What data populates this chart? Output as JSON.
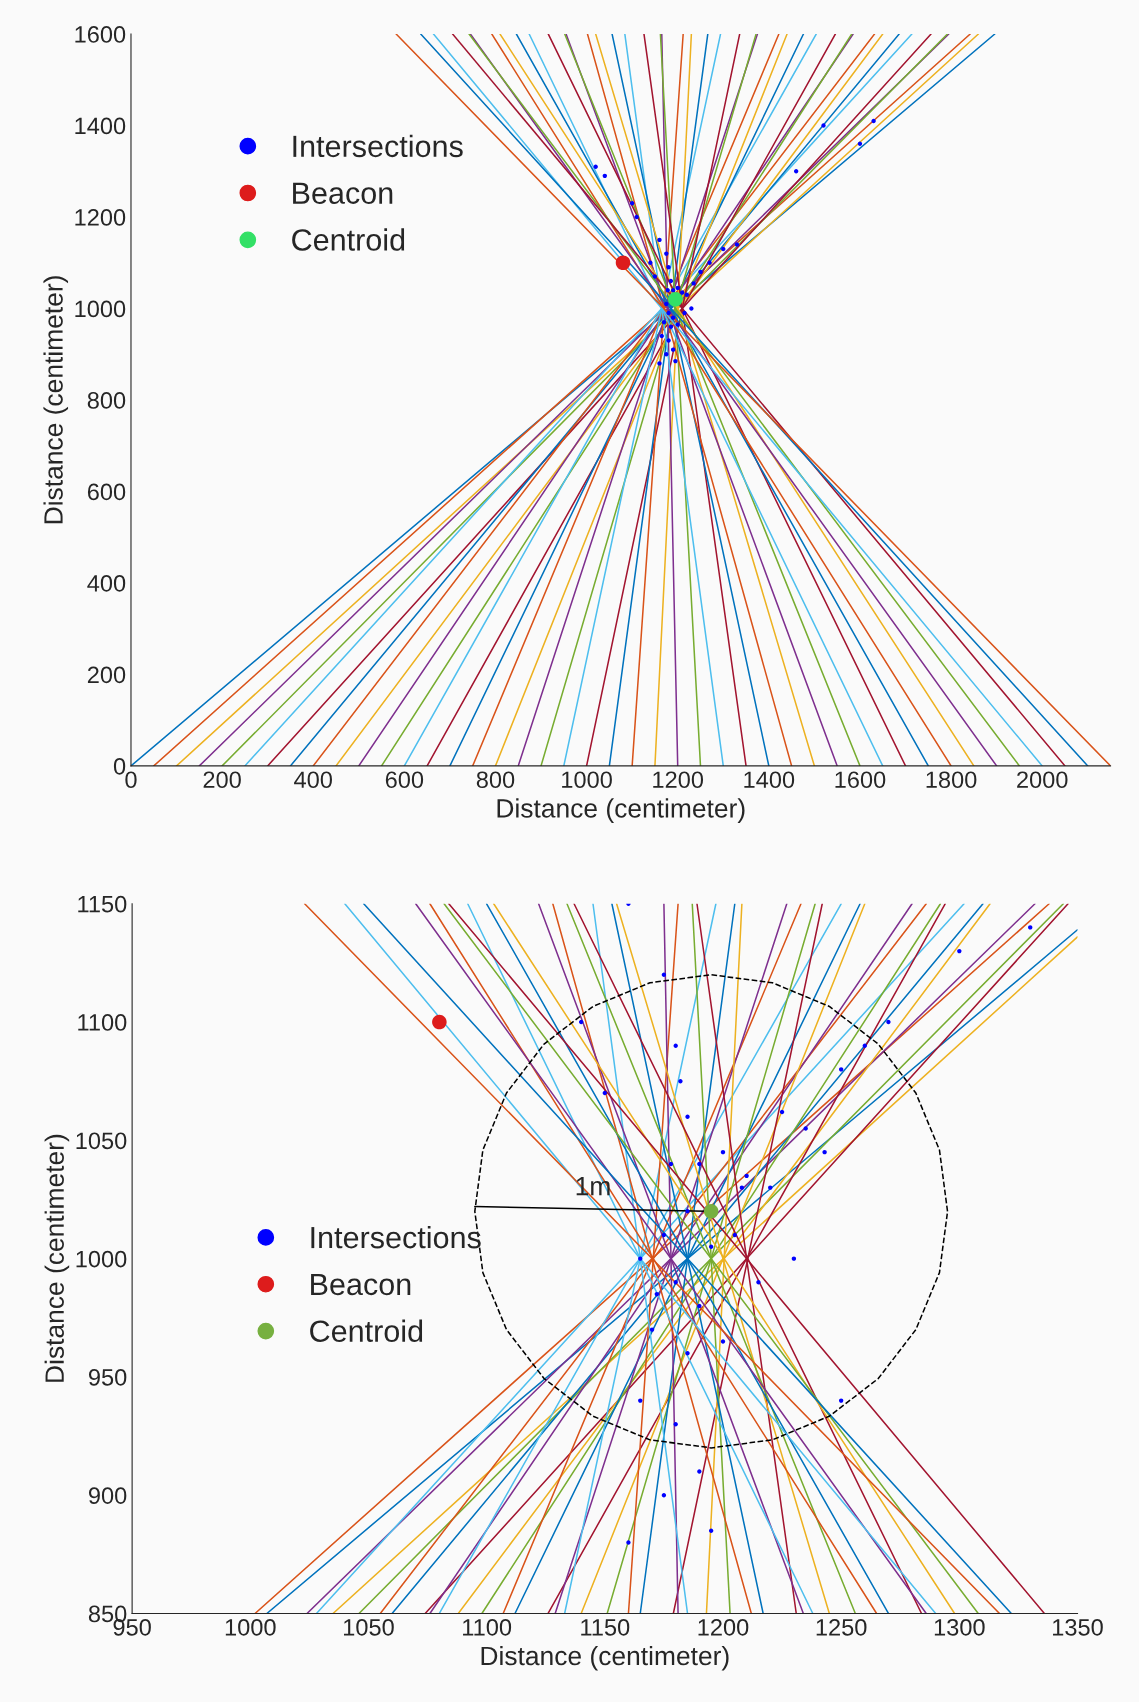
{
  "chart_data": [
    {
      "type": "line",
      "xlabel": "Distance (centimeter)",
      "ylabel": "Distance (centimeter)",
      "xlim": [
        0,
        2150
      ],
      "ylim": [
        0,
        1600
      ],
      "xticks": [
        0,
        200,
        400,
        600,
        800,
        1000,
        1200,
        1400,
        1600,
        1800,
        2000
      ],
      "yticks": [
        0,
        200,
        400,
        600,
        800,
        1000,
        1200,
        1400,
        1600
      ],
      "legend": "top left",
      "series": [
        {
          "color": "#0072bd",
          "x": [
            0,
            1896
          ],
          "values": [
            0,
            1600
          ]
        },
        {
          "color": "#d95319",
          "x": [
            50,
            1842
          ],
          "values": [
            0,
            1600
          ]
        },
        {
          "color": "#edb120",
          "x": [
            100,
            1860
          ],
          "values": [
            0,
            1600
          ]
        },
        {
          "color": "#7e2f8e",
          "x": [
            150,
            1795
          ],
          "values": [
            0,
            1600
          ]
        },
        {
          "color": "#77ac30",
          "x": [
            200,
            1792
          ],
          "values": [
            0,
            1600
          ]
        },
        {
          "color": "#4dbeee",
          "x": [
            250,
            1714
          ],
          "values": [
            0,
            1600
          ]
        },
        {
          "color": "#a2142f",
          "x": [
            300,
            1756
          ],
          "values": [
            0,
            1600
          ]
        },
        {
          "color": "#0072bd",
          "x": [
            350,
            1686
          ],
          "values": [
            0,
            1600
          ]
        },
        {
          "color": "#d95319",
          "x": [
            400,
            1632
          ],
          "values": [
            0,
            1600
          ]
        },
        {
          "color": "#edb120",
          "x": [
            450,
            1650
          ],
          "values": [
            0,
            1600
          ]
        },
        {
          "color": "#7e2f8e",
          "x": [
            500,
            1585
          ],
          "values": [
            0,
            1600
          ]
        },
        {
          "color": "#77ac30",
          "x": [
            550,
            1582
          ],
          "values": [
            0,
            1600
          ]
        },
        {
          "color": "#4dbeee",
          "x": [
            600,
            1504
          ],
          "values": [
            0,
            1600
          ]
        },
        {
          "color": "#a2142f",
          "x": [
            650,
            1546
          ],
          "values": [
            0,
            1600
          ]
        },
        {
          "color": "#0072bd",
          "x": [
            700,
            1476
          ],
          "values": [
            0,
            1600
          ]
        },
        {
          "color": "#d95319",
          "x": [
            750,
            1422
          ],
          "values": [
            0,
            1600
          ]
        },
        {
          "color": "#edb120",
          "x": [
            800,
            1440
          ],
          "values": [
            0,
            1600
          ]
        },
        {
          "color": "#7e2f8e",
          "x": [
            850,
            1375
          ],
          "values": [
            0,
            1600
          ]
        },
        {
          "color": "#77ac30",
          "x": [
            900,
            1372
          ],
          "values": [
            0,
            1600
          ]
        },
        {
          "color": "#4dbeee",
          "x": [
            950,
            1294
          ],
          "values": [
            0,
            1600
          ]
        },
        {
          "color": "#a2142f",
          "x": [
            1000,
            1336
          ],
          "values": [
            0,
            1600
          ]
        },
        {
          "color": "#0072bd",
          "x": [
            1050,
            1266
          ],
          "values": [
            0,
            1600
          ]
        },
        {
          "color": "#d95319",
          "x": [
            1100,
            1212
          ],
          "values": [
            0,
            1600
          ]
        },
        {
          "color": "#edb120",
          "x": [
            1150,
            1230
          ],
          "values": [
            0,
            1600
          ]
        },
        {
          "color": "#7e2f8e",
          "x": [
            1200,
            1165
          ],
          "values": [
            0,
            1600
          ]
        },
        {
          "color": "#77ac30",
          "x": [
            1250,
            1162
          ],
          "values": [
            0,
            1600
          ]
        },
        {
          "color": "#4dbeee",
          "x": [
            1300,
            1084
          ],
          "values": [
            0,
            1600
          ]
        },
        {
          "color": "#a2142f",
          "x": [
            1350,
            1126
          ],
          "values": [
            0,
            1600
          ]
        },
        {
          "color": "#0072bd",
          "x": [
            1400,
            1056
          ],
          "values": [
            0,
            1600
          ]
        },
        {
          "color": "#d95319",
          "x": [
            1450,
            1002
          ],
          "values": [
            0,
            1600
          ]
        },
        {
          "color": "#edb120",
          "x": [
            1500,
            1020
          ],
          "values": [
            0,
            1600
          ]
        },
        {
          "color": "#7e2f8e",
          "x": [
            1550,
            955
          ],
          "values": [
            0,
            1600
          ]
        },
        {
          "color": "#77ac30",
          "x": [
            1600,
            952
          ],
          "values": [
            0,
            1600
          ]
        },
        {
          "color": "#4dbeee",
          "x": [
            1650,
            874
          ],
          "values": [
            0,
            1600
          ]
        },
        {
          "color": "#a2142f",
          "x": [
            1700,
            916
          ],
          "values": [
            0,
            1600
          ]
        },
        {
          "color": "#0072bd",
          "x": [
            1750,
            846
          ],
          "values": [
            0,
            1600
          ]
        },
        {
          "color": "#d95319",
          "x": [
            1800,
            792
          ],
          "values": [
            0,
            1600
          ]
        },
        {
          "color": "#edb120",
          "x": [
            1850,
            810
          ],
          "values": [
            0,
            1600
          ]
        },
        {
          "color": "#7e2f8e",
          "x": [
            1900,
            745
          ],
          "values": [
            0,
            1600
          ]
        },
        {
          "color": "#77ac30",
          "x": [
            1950,
            742
          ],
          "values": [
            0,
            1600
          ]
        },
        {
          "color": "#4dbeee",
          "x": [
            2000,
            664
          ],
          "values": [
            0,
            1600
          ]
        },
        {
          "color": "#a2142f",
          "x": [
            2050,
            706
          ],
          "values": [
            0,
            1600
          ]
        },
        {
          "color": "#0072bd",
          "x": [
            2100,
            636
          ],
          "values": [
            0,
            1600
          ]
        },
        {
          "color": "#d95319",
          "x": [
            2150,
            582
          ],
          "values": [
            0,
            1600
          ]
        },
        {
          "type": "scatter",
          "name": "Intersections",
          "color": "#0000ff",
          "marker": "circle",
          "x": [
            1020,
            1040,
            1100,
            1110,
            1160,
            1175,
            1180,
            1185,
            1178,
            1190,
            1200,
            1210,
            1175,
            1195,
            1205,
            1220,
            1235,
            1250,
            1180,
            1190,
            1170,
            1185,
            1200,
            1215,
            1165,
            1180,
            1175,
            1190,
            1160,
            1195,
            1230,
            1150,
            1140,
            1270,
            1300,
            1330,
            1460,
            1520,
            1600,
            1630
          ],
          "values": [
            1310,
            1290,
            1230,
            1200,
            1150,
            1120,
            1090,
            1060,
            1040,
            1040,
            1045,
            1035,
            1010,
            null,
            null,
            1030,
            1055,
            1080,
            990,
            980,
            970,
            960,
            965,
            990,
            940,
            930,
            900,
            910,
            880,
            885,
            1000,
            1070,
            1100,
            1100,
            1130,
            1140,
            1300,
            1400,
            1360,
            1410
          ]
        },
        {
          "type": "scatter",
          "name": "Beacon",
          "color": "#dd1c1c",
          "marker": "circle",
          "x": [
            1080
          ],
          "values": [
            1100
          ]
        },
        {
          "type": "scatter",
          "name": "Centroid",
          "color": "#33e066",
          "marker": "circle",
          "x": [
            1195
          ],
          "values": [
            1020
          ]
        }
      ]
    },
    {
      "type": "line",
      "xlabel": "Distance (centimeter)",
      "ylabel": "Distance (centimeter)",
      "xlim": [
        950,
        1350
      ],
      "ylim": [
        850,
        1150
      ],
      "xticks": [
        950,
        1000,
        1050,
        1100,
        1150,
        1200,
        1250,
        1300,
        1350
      ],
      "yticks": [
        850,
        900,
        950,
        1000,
        1050,
        1100,
        1150
      ],
      "legend": "left",
      "annotations": [
        {
          "text": "1m",
          "x": 1145,
          "y": 1021
        }
      ],
      "series": [
        {
          "color": "#0072bd",
          "x": [
            1007,
            1350
          ],
          "values": [
            850,
            1139
          ]
        },
        {
          "color": "#d95319",
          "x": [
            1002,
            1338
          ],
          "values": [
            850,
            1150
          ]
        },
        {
          "color": "#edb120",
          "x": [
            1035,
            1350
          ],
          "values": [
            850,
            1136
          ]
        },
        {
          "color": "#7e2f8e",
          "x": [
            1024,
            1332
          ],
          "values": [
            850,
            1150
          ]
        },
        {
          "color": "#77ac30",
          "x": [
            1046,
            1344
          ],
          "values": [
            850,
            1150
          ]
        },
        {
          "color": "#4dbeee",
          "x": [
            1028,
            1302
          ],
          "values": [
            850,
            1150
          ]
        },
        {
          "color": "#a2142f",
          "x": [
            1074,
            1346
          ],
          "values": [
            850,
            1150
          ]
        },
        {
          "color": "#0072bd",
          "x": [
            1060,
            1310
          ],
          "values": [
            850,
            1150
          ]
        },
        {
          "color": "#d95319",
          "x": [
            1055,
            1286
          ],
          "values": [
            850,
            1150
          ]
        },
        {
          "color": "#edb120",
          "x": [
            1088,
            1313
          ],
          "values": [
            850,
            1150
          ]
        },
        {
          "color": "#7e2f8e",
          "x": [
            1076,
            1280
          ],
          "values": [
            850,
            1150
          ]
        },
        {
          "color": "#77ac30",
          "x": [
            1098,
            1292
          ],
          "values": [
            850,
            1150
          ]
        },
        {
          "color": "#4dbeee",
          "x": [
            1080,
            1250
          ],
          "values": [
            850,
            1150
          ]
        },
        {
          "color": "#a2142f",
          "x": [
            1126,
            1294
          ],
          "values": [
            850,
            1150
          ]
        },
        {
          "color": "#0072bd",
          "x": [
            1112,
            1258
          ],
          "values": [
            850,
            1150
          ]
        },
        {
          "color": "#d95319",
          "x": [
            1107,
            1233
          ],
          "values": [
            850,
            1150
          ]
        },
        {
          "color": "#edb120",
          "x": [
            1140,
            1260
          ],
          "values": [
            850,
            1150
          ]
        },
        {
          "color": "#7e2f8e",
          "x": [
            1129,
            1227
          ],
          "values": [
            850,
            1150
          ]
        },
        {
          "color": "#77ac30",
          "x": [
            1151,
            1239
          ],
          "values": [
            850,
            1150
          ]
        },
        {
          "color": "#4dbeee",
          "x": [
            1133,
            1197
          ],
          "values": [
            850,
            1150
          ]
        },
        {
          "color": "#a2142f",
          "x": [
            1179,
            1242
          ],
          "values": [
            850,
            1150
          ]
        },
        {
          "color": "#0072bd",
          "x": [
            1165,
            1205
          ],
          "values": [
            850,
            1150
          ]
        },
        {
          "color": "#d95319",
          "x": [
            1160,
            1181
          ],
          "values": [
            850,
            1150
          ]
        },
        {
          "color": "#edb120",
          "x": [
            1193,
            1208
          ],
          "values": [
            850,
            1150
          ]
        },
        {
          "color": "#7e2f8e",
          "x": [
            1181,
            1175
          ],
          "values": [
            850,
            1150
          ]
        },
        {
          "color": "#77ac30",
          "x": [
            1203,
            1187
          ],
          "values": [
            850,
            1150
          ]
        },
        {
          "color": "#4dbeee",
          "x": [
            1185,
            1145
          ],
          "values": [
            850,
            1150
          ]
        },
        {
          "color": "#a2142f",
          "x": [
            1231,
            1189
          ],
          "values": [
            850,
            1150
          ]
        },
        {
          "color": "#0072bd",
          "x": [
            1217,
            1153
          ],
          "values": [
            850,
            1150
          ]
        },
        {
          "color": "#d95319",
          "x": [
            1212,
            1128
          ],
          "values": [
            850,
            1150
          ]
        },
        {
          "color": "#edb120",
          "x": [
            1245,
            1155
          ],
          "values": [
            850,
            1150
          ]
        },
        {
          "color": "#7e2f8e",
          "x": [
            1234,
            1122
          ],
          "values": [
            850,
            1150
          ]
        },
        {
          "color": "#77ac30",
          "x": [
            1256,
            1134
          ],
          "values": [
            850,
            1150
          ]
        },
        {
          "color": "#4dbeee",
          "x": [
            1238,
            1092
          ],
          "values": [
            850,
            1150
          ]
        },
        {
          "color": "#a2142f",
          "x": [
            1284,
            1137
          ],
          "values": [
            850,
            1150
          ]
        },
        {
          "color": "#0072bd",
          "x": [
            1270,
            1100
          ],
          "values": [
            850,
            1150
          ]
        },
        {
          "color": "#d95319",
          "x": [
            1265,
            1076
          ],
          "values": [
            850,
            1150
          ]
        },
        {
          "color": "#edb120",
          "x": [
            1298,
            1103
          ],
          "values": [
            850,
            1150
          ]
        },
        {
          "color": "#7e2f8e",
          "x": [
            1286,
            1070
          ],
          "values": [
            850,
            1150
          ]
        },
        {
          "color": "#77ac30",
          "x": [
            1308,
            1082
          ],
          "values": [
            850,
            1150
          ]
        },
        {
          "color": "#4dbeee",
          "x": [
            1290,
            1040
          ],
          "values": [
            850,
            1150
          ]
        },
        {
          "color": "#a2142f",
          "x": [
            1336,
            1084
          ],
          "values": [
            850,
            1150
          ]
        },
        {
          "color": "#0072bd",
          "x": [
            1322,
            1048
          ],
          "values": [
            850,
            1150
          ]
        },
        {
          "color": "#d95319",
          "x": [
            1317,
            1023
          ],
          "values": [
            850,
            1150
          ]
        },
        {
          "color": "#000000",
          "line_style": "dashed",
          "x": [
            1295,
            1291.6,
            1281.6,
            1265.7,
            1245,
            1220.9,
            1195,
            1169.1,
            1145,
            1124.3,
            1108.4,
            1098.4,
            1095,
            1098.4,
            1108.4,
            1124.3,
            1145,
            1169.1,
            1195,
            1220.9,
            1245,
            1265.7,
            1281.6,
            1291.6,
            1294.9
          ],
          "values": [
            1020,
            1045.9,
            1070,
            1090.7,
            1106.6,
            1116.6,
            1120,
            1116.6,
            1106.6,
            1090.7,
            1070,
            1045.9,
            1020,
            994.1,
            970,
            949.3,
            933.4,
            923.4,
            920,
            923.4,
            933.4,
            949.3,
            970,
            994.1,
            1019
          ]
        },
        {
          "color": "#000000",
          "x": [
            1095,
            1193
          ],
          "values": [
            1022,
            1020
          ]
        },
        {
          "type": "scatter",
          "name": "Intersections",
          "color": "#0000ff",
          "marker": "circle",
          "x": [
            1160,
            1175,
            1180,
            1185,
            1178,
            1190,
            1200,
            1210,
            1185,
            1175,
            1195,
            1205,
            1220,
            1235,
            1250,
            1180,
            1190,
            1170,
            1185,
            1200,
            1215,
            1165,
            1180,
            1175,
            1190,
            1160,
            1195,
            1230,
            1250,
            1140,
            1150,
            1270,
            1300,
            1330,
            1165,
            1172,
            1182,
            1208,
            1225,
            1243,
            1260
          ],
          "values": [
            1150,
            1120,
            1090,
            1060,
            1040,
            1040,
            1045,
            1035,
            1020,
            1010,
            1005,
            1010,
            1030,
            1055,
            1080,
            990,
            980,
            970,
            960,
            965,
            990,
            940,
            930,
            900,
            910,
            880,
            885,
            1000,
            940,
            1100,
            1070,
            1100,
            1130,
            1140,
            1000,
            985,
            1075,
            1030,
            1062,
            1045,
            1090
          ]
        },
        {
          "type": "scatter",
          "name": "Beacon",
          "color": "#dd1c1c",
          "marker": "circle",
          "x": [
            1080
          ],
          "values": [
            1100
          ]
        },
        {
          "type": "scatter",
          "name": "Centroid",
          "color": "#77b040",
          "marker": "circle",
          "x": [
            1195
          ],
          "values": [
            1020
          ]
        }
      ]
    }
  ]
}
